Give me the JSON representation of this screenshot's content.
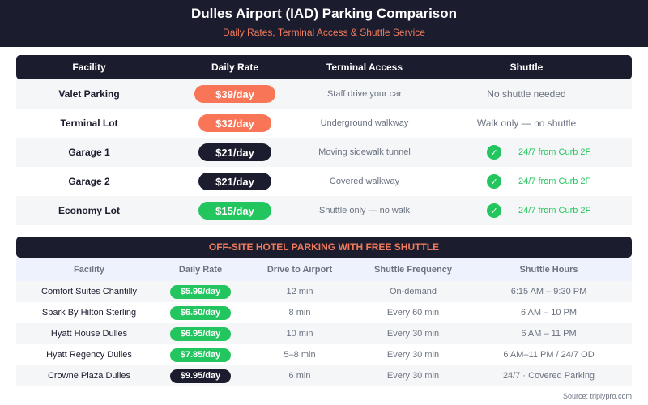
{
  "header": {
    "title": "Dulles Airport (IAD) Parking Comparison",
    "subtitle": "Daily Rates, Terminal Access & Shuttle Service"
  },
  "main_table": {
    "columns": [
      "Facility",
      "Daily Rate",
      "Terminal Access",
      "Shuttle"
    ],
    "rows": [
      {
        "facility": "Valet Parking",
        "rate": "$39/day",
        "rate_color": "#f97558",
        "terminal_access": "Staff drive your car",
        "shuttle_text": "No shuttle needed",
        "shuttle_check": false
      },
      {
        "facility": "Terminal Lot",
        "rate": "$32/day",
        "rate_color": "#f97558",
        "terminal_access": "Underground walkway",
        "shuttle_text": "Walk only — no shuttle",
        "shuttle_check": false
      },
      {
        "facility": "Garage 1",
        "rate": "$21/day",
        "rate_color": "#1b1c2e",
        "terminal_access": "Moving sidewalk tunnel",
        "shuttle_text": "24/7 from Curb 2F",
        "shuttle_check": true,
        "check_icon": "✓"
      },
      {
        "facility": "Garage 2",
        "rate": "$21/day",
        "rate_color": "#1b1c2e",
        "terminal_access": "Covered walkway",
        "shuttle_text": "24/7 from Curb 2F",
        "shuttle_check": true,
        "check_icon": "✓"
      },
      {
        "facility": "Economy Lot",
        "rate": "$15/day",
        "rate_color": "#22c55e",
        "terminal_access": "Shuttle only — no walk",
        "shuttle_text": "24/7 from Curb 2F",
        "shuttle_check": true,
        "check_icon": "✓"
      }
    ]
  },
  "hotel_table": {
    "banner": "OFF-SITE HOTEL PARKING WITH FREE SHUTTLE",
    "columns": [
      "Facility",
      "Daily Rate",
      "Drive to Airport",
      "Shuttle Frequency",
      "Shuttle Hours"
    ],
    "rows": [
      {
        "facility": "Comfort Suites Chantilly",
        "rate": "$5.99/day",
        "rate_color": "#22c55e",
        "drive": "12 min",
        "frequency": "On-demand",
        "hours": "6:15 AM – 9:30 PM"
      },
      {
        "facility": "Spark By Hilton Sterling",
        "rate": "$6.50/day",
        "rate_color": "#22c55e",
        "drive": "8 min",
        "frequency": "Every 60 min",
        "hours": "6 AM – 10 PM"
      },
      {
        "facility": "Hyatt House Dulles",
        "rate": "$6.95/day",
        "rate_color": "#22c55e",
        "drive": "10 min",
        "frequency": "Every 30 min",
        "hours": "6 AM – 11 PM"
      },
      {
        "facility": "Hyatt Regency Dulles",
        "rate": "$7.85/day",
        "rate_color": "#22c55e",
        "drive": "5–8 min",
        "frequency": "Every 30 min",
        "hours": "6 AM–11 PM / 24/7 OD"
      },
      {
        "facility": "Crowne Plaza Dulles",
        "rate": "$9.95/day",
        "rate_color": "#1b1c2e",
        "drive": "6 min",
        "frequency": "Every 30 min",
        "hours": "24/7 · Covered Parking"
      }
    ]
  },
  "footer": {
    "source": "Source: triplypro.com"
  },
  "colors": {
    "navy": "#1b1c2e",
    "coral": "#f97558",
    "green": "#22c55e",
    "muted": "#6b7280"
  }
}
